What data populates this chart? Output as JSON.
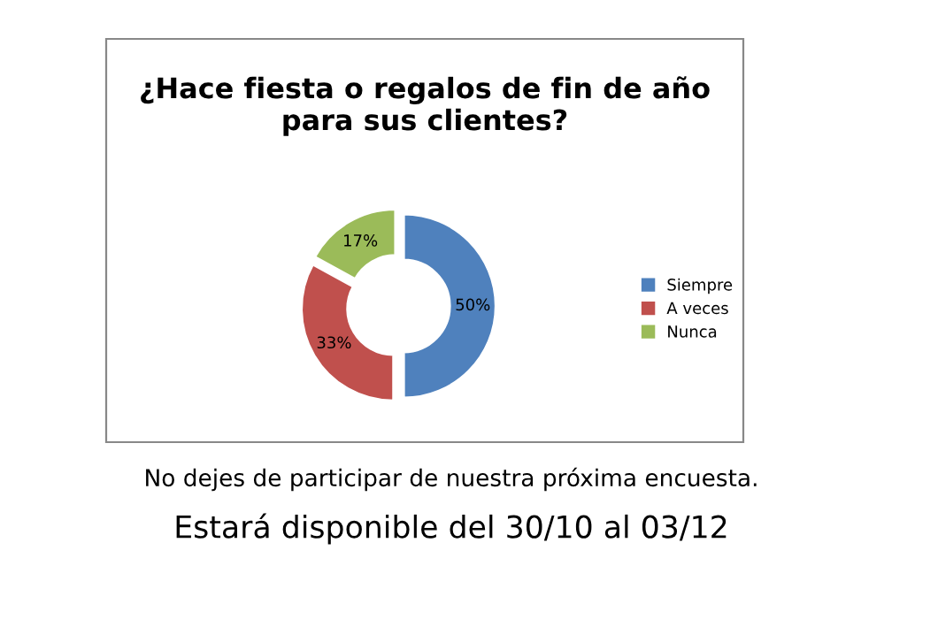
{
  "chart_data": {
    "type": "donut",
    "title": "¿Hace fiesta o regalos de fin de año\npara sus clientes?",
    "categories": [
      "Siempre",
      "A veces",
      "Nunca"
    ],
    "values": [
      50,
      33,
      17
    ],
    "colors": [
      "#4f81bd",
      "#c0504d",
      "#9bbb59"
    ],
    "value_labels": [
      "50%",
      "33%",
      "17%"
    ],
    "legend": "right",
    "annotations": [
      "No dejes de participar de nuestra próxima encuesta.",
      "Estará disponible del 30/10 al 03/12"
    ]
  }
}
